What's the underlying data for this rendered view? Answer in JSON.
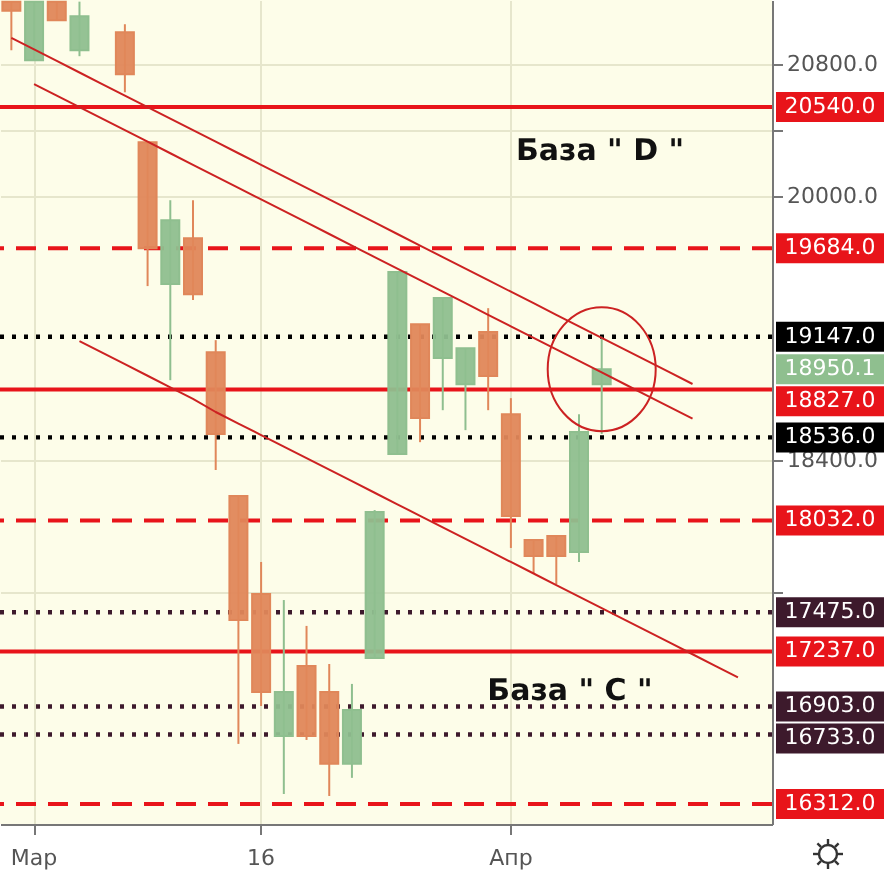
{
  "chart_data": {
    "type": "candlestick",
    "categories": [
      null,
      "Мар",
      null,
      null,
      null,
      null,
      null,
      null,
      null,
      null,
      null,
      "16",
      null,
      null,
      null,
      null,
      null,
      null,
      null,
      null,
      null,
      null,
      "Апр",
      null,
      null,
      null,
      null,
      null,
      null,
      null,
      null,
      null,
      null,
      null
    ],
    "ohlc": [
      [
        21180,
        21180,
        20885,
        21125
      ],
      [
        20824,
        21180,
        20824,
        21180
      ],
      [
        21180,
        21180,
        21067,
        21067
      ],
      [
        20885,
        21180,
        20849,
        21091
      ],
      null,
      [
        20994,
        21043,
        20630,
        20739
      ],
      [
        20327,
        20327,
        19454,
        19684
      ],
      [
        19466,
        19975,
        18883,
        19854
      ],
      [
        19745,
        19975,
        19369,
        19405
      ],
      [
        19053,
        19126,
        18338,
        18556
      ],
      [
        18180,
        18180,
        16676,
        17428
      ],
      [
        17586,
        17780,
        16906,
        16991
      ],
      [
        16724,
        17549,
        16372,
        16991
      ],
      [
        17149,
        17392,
        16700,
        16724
      ],
      [
        16991,
        17161,
        16360,
        16555
      ],
      [
        16555,
        17040,
        16470,
        16882
      ],
      [
        17197,
        18095,
        17197,
        18083
      ],
      [
        18435,
        19539,
        18435,
        19539
      ],
      [
        19223,
        19223,
        18507,
        18653
      ],
      [
        19017,
        19381,
        18701,
        19381
      ],
      [
        18859,
        19077,
        18580,
        19077
      ],
      [
        19175,
        19320,
        18701,
        18908
      ],
      [
        18677,
        18774,
        17865,
        18059
      ],
      [
        17913,
        17913,
        17707,
        17816
      ],
      [
        17937,
        17937,
        17646,
        17816
      ],
      [
        17840,
        18677,
        17780,
        18568
      ],
      [
        18859,
        19147,
        18556,
        18950
      ],
      null,
      null,
      null,
      null,
      null,
      null,
      null
    ],
    "colors": [
      "#e0875a",
      "#8fbf8f",
      "#e0875a",
      "#8fbf8f",
      null,
      "#e0875a",
      "#e0875a",
      "#8fbf8f",
      "#e0875a",
      "#e0875a",
      "#e0875a",
      "#e0875a",
      "#8fbf8f",
      "#e0875a",
      "#e0875a",
      "#8fbf8f",
      "#8fbf8f",
      "#8fbf8f",
      "#e0875a",
      "#8fbf8f",
      "#8fbf8f",
      "#e0875a",
      "#e0875a",
      "#e0875a",
      "#e0875a",
      "#8fbf8f",
      "#8fbf8f",
      null,
      null,
      null,
      null,
      null,
      null,
      null
    ],
    "series": [
      {
        "type": "line",
        "color": "#cc2222",
        "values": [
          20960,
          20890,
          20820,
          20750,
          20680,
          20610,
          20540,
          20470,
          20400,
          20330,
          20260,
          20190,
          20120,
          20050,
          19980,
          19910,
          19840,
          19770,
          19700,
          19630,
          19560,
          19490,
          19420,
          19350,
          19280,
          19210,
          19140,
          19070,
          19000,
          18930,
          18860,
          null,
          null,
          null
        ]
      },
      {
        "type": "line",
        "color": "#cc2222",
        "values": [
          null,
          20680,
          20610,
          20540,
          20470,
          20400,
          20330,
          20260,
          20190,
          20120,
          20050,
          19980,
          19910,
          19840,
          19770,
          19700,
          19630,
          19560,
          19490,
          19420,
          19350,
          19280,
          19210,
          19140,
          19070,
          19000,
          18930,
          18860,
          18790,
          18720,
          18650,
          null,
          null,
          null
        ]
      },
      {
        "type": "line",
        "color": "#cc2222",
        "values": [
          null,
          null,
          null,
          19120,
          19050,
          18980,
          18910,
          18840,
          18770,
          18690,
          18620,
          18550,
          18480,
          18410,
          18340,
          18270,
          18200,
          18130,
          18060,
          17990,
          17920,
          17850,
          17780,
          17710,
          17640,
          17570,
          17500,
          17430,
          17360,
          17290,
          17220,
          17150,
          17080,
          null
        ]
      }
    ],
    "ylim": [
      16190,
      21190
    ],
    "yticks": [
      {
        "value": 20800,
        "label": "20800.0"
      },
      {
        "value": 20400,
        "label": null
      },
      {
        "value": 20000,
        "label": "20000.0"
      },
      {
        "value": 18400,
        "label": "18400.0"
      },
      {
        "value": 17600,
        "label": null
      }
    ],
    "grid": true,
    "ref_lines": [
      {
        "axis": "y",
        "value": 20540,
        "label": "20540.0",
        "color": "#e8141a",
        "line_style": "solid"
      },
      {
        "axis": "y",
        "value": 19684,
        "label": "19684.0",
        "color": "#e8141a",
        "line_style": "dashed"
      },
      {
        "axis": "y",
        "value": 19147,
        "label": "19147.0",
        "color": "#000000",
        "line_style": "dotted"
      },
      {
        "axis": "y",
        "value": 18827,
        "label": "18827.0",
        "color": "#e8141a",
        "line_style": "solid"
      },
      {
        "axis": "y",
        "value": 18536,
        "label": "18536.0",
        "color": "#000000",
        "line_style": "dotted"
      },
      {
        "axis": "y",
        "value": 18032,
        "label": "18032.0",
        "color": "#e8141a",
        "line_style": "dashed"
      },
      {
        "axis": "y",
        "value": 17475,
        "label": "17475.0",
        "color": "#3d1a2c",
        "line_style": "dotted"
      },
      {
        "axis": "y",
        "value": 17237,
        "label": "17237.0",
        "color": "#e8141a",
        "line_style": "solid"
      },
      {
        "axis": "y",
        "value": 16903,
        "label": "16903.0",
        "color": "#3d1a2c",
        "line_style": "dotted"
      },
      {
        "axis": "y",
        "value": 16733,
        "label": "16733.0",
        "color": "#3d1a2c",
        "line_style": "dotted"
      },
      {
        "axis": "y",
        "value": 16312,
        "label": "16312.0",
        "color": "#e8141a",
        "line_style": "dashed"
      }
    ],
    "annotations": [
      "База  \" D \"",
      "База  \" C \"",
      "18950.1"
    ]
  }
}
